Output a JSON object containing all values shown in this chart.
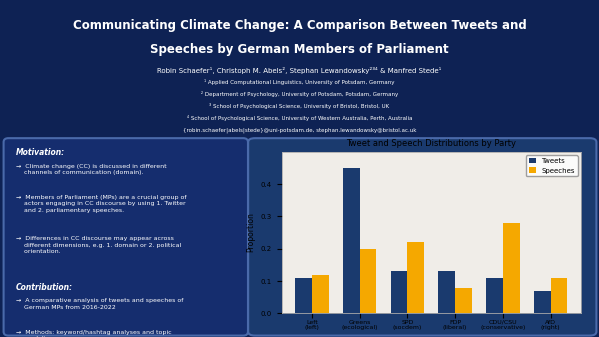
{
  "title_line1": "Communicating Climate Change: A Comparison Between Tweets and",
  "title_line2": "Speeches by German Members of Parliament",
  "authors": "Robin Schaefer¹, Christoph M. Abels², Stephan Lewandowsky²³⁴ & Manfred Stede¹",
  "affil1": "¹ Applied Computational Linguistics, University of Potsdam, Germany",
  "affil2": "² Department of Psychology, University of Potsdam, Potsdam, Germany",
  "affil3": "³ School of Psychological Science, University of Bristol, Bristol, UK",
  "affil4": "⁴ School of Psychological Science, University of Western Australia, Perth, Australia",
  "email": "{robin.schaefer|abels|stede}@uni-potsdam.de, stephan.lewandowsky@bristol.ac.uk",
  "motivation_title": "Motivation:",
  "motivation_bullets": [
    "→  Climate change (CC) is discussed in different\n    channels of communication (domain).",
    "→  Members of Parliament (MPs) are a crucial group of\n    actors engaging in CC discourse by using 1. Twitter\n    and 2. parliamentary speeches.",
    "→  Differences in CC discourse may appear across\n    different dimensions, e.g. 1. domain or 2. political\n    orientation."
  ],
  "contribution_title": "Contribution:",
  "contribution_bullets": [
    "→  A comparative analysis of tweets and speeches of\n    German MPs from 2016-2022",
    "→  Methods: keyword/hashtag analyses and topic\n    modeling"
  ],
  "chart_title": "Tweet and Speech Distributions by Party",
  "categories": [
    "Left\n(left)",
    "Greens\n(ecological)",
    "SPD\n(socdem)",
    "FDP\n(liberal)",
    "CDU/CSU\n(conservative)",
    "AfD\n(right)"
  ],
  "tweets": [
    0.11,
    0.45,
    0.13,
    0.13,
    0.11,
    0.07
  ],
  "speeches": [
    0.12,
    0.2,
    0.22,
    0.08,
    0.28,
    0.11
  ],
  "tweet_color": "#1a3a6e",
  "speech_color": "#f5a800",
  "ylabel": "Proportion",
  "ylim": [
    0.0,
    0.5
  ],
  "yticks": [
    0.0,
    0.1,
    0.2,
    0.3,
    0.4
  ],
  "bg_dark": "#0e2254",
  "bg_panel": "#152d6e",
  "bg_chart_box": "#1a3a6e",
  "bg_chart": "#f0ede8",
  "title_color": "#ffffff",
  "text_color": "#ffffff",
  "legend_tweets": "Tweets",
  "legend_speeches": "Speeches"
}
